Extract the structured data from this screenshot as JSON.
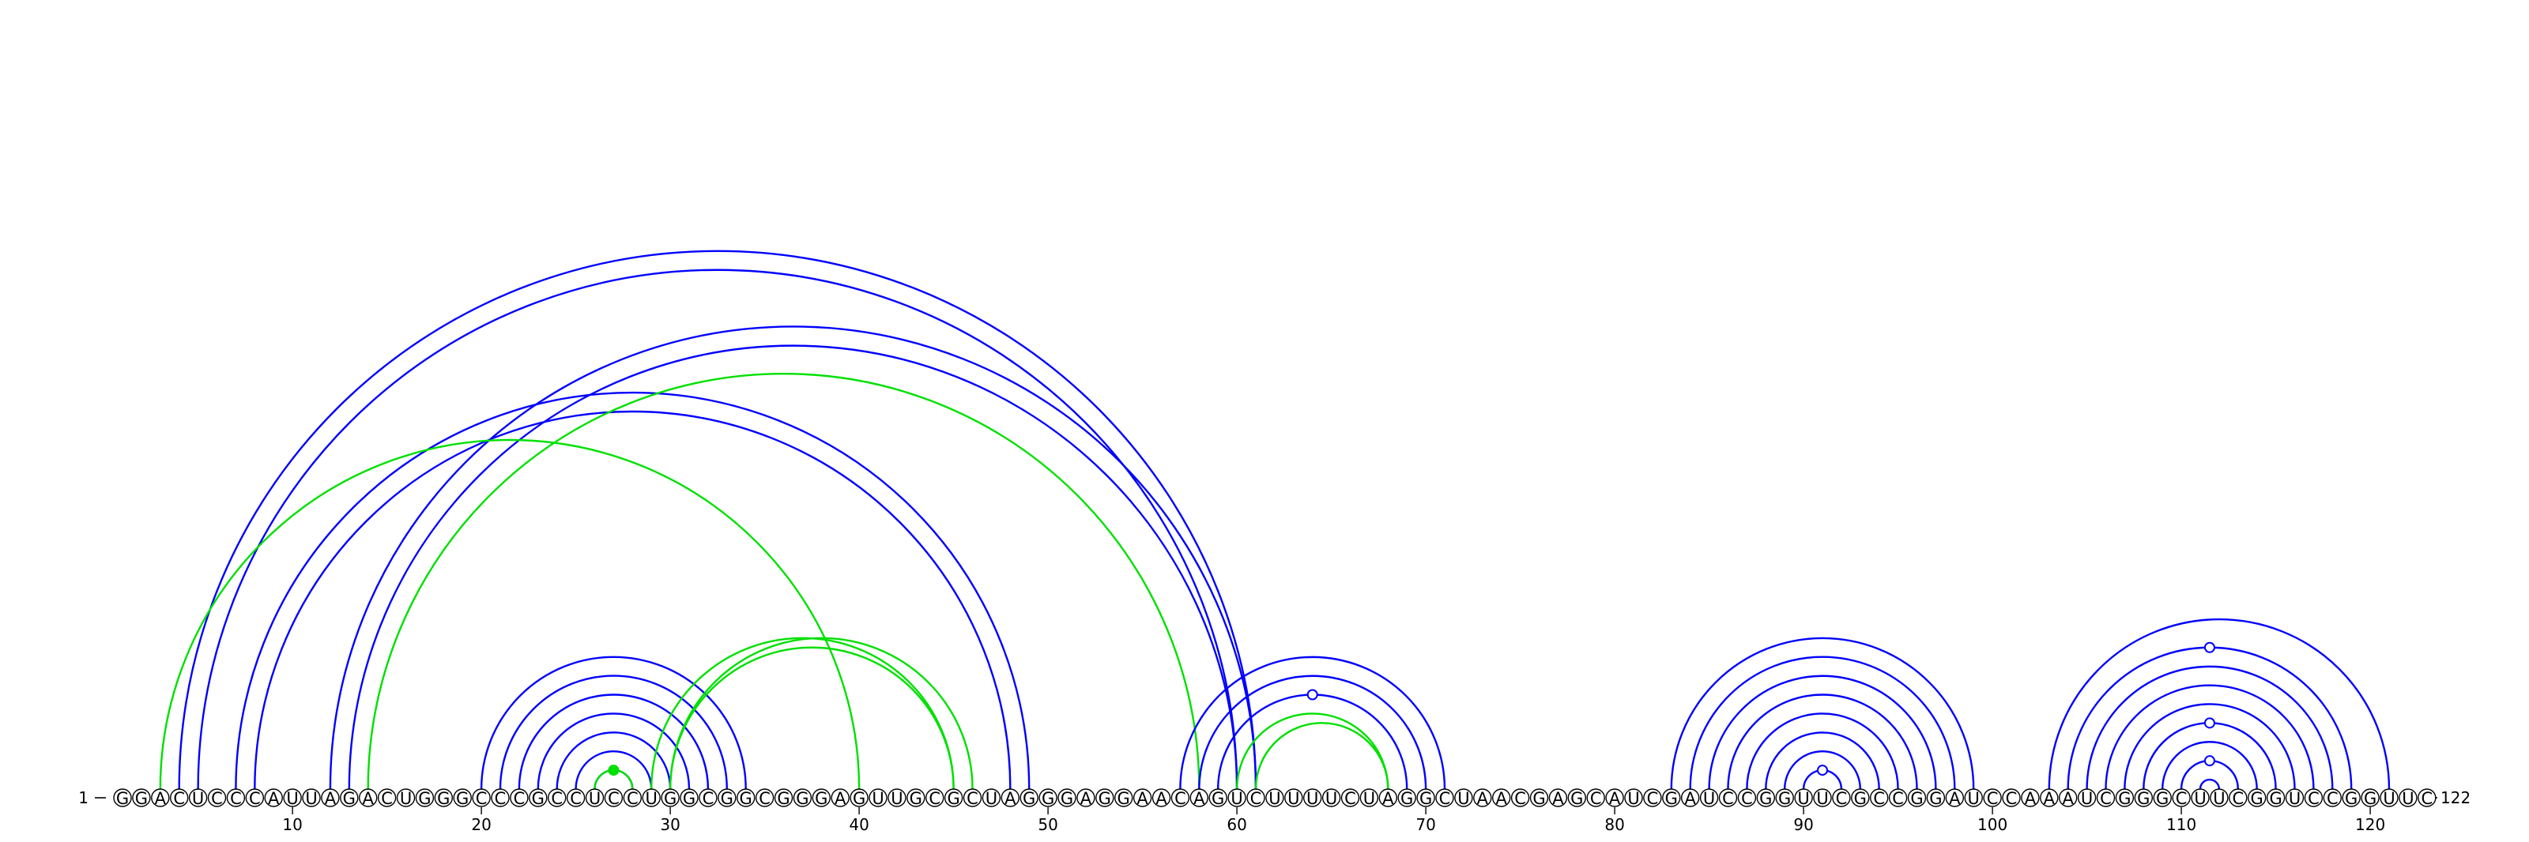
{
  "sequence": "GGACUCCCAUUAGACUGGGCCCGCCUCCUGGCGGCGGGAGUUGCGCUAGGGAGGAACAGUCUUUUCUAGGCUAACGAGCAUCGAUCCGGUUCGCCGGAUCCAAAUCGGGCUUCGGUCCGGUUC",
  "start_label": "1",
  "end_label": "122",
  "ticks": [
    "10",
    "20",
    "30",
    "40",
    "50",
    "60",
    "70",
    "80",
    "90",
    "100",
    "110",
    "120"
  ],
  "colors": {
    "blue": "#0000ff",
    "green": "#00e000"
  },
  "arcs": [
    {
      "i": 4,
      "j": 61,
      "color": "blue"
    },
    {
      "i": 5,
      "j": 60,
      "color": "blue"
    },
    {
      "i": 7,
      "j": 49,
      "color": "blue"
    },
    {
      "i": 8,
      "j": 48,
      "color": "blue"
    },
    {
      "i": 12,
      "j": 61,
      "color": "blue"
    },
    {
      "i": 13,
      "j": 60,
      "color": "blue"
    },
    {
      "i": 3,
      "j": 40,
      "color": "green"
    },
    {
      "i": 14,
      "j": 58,
      "color": "green"
    },
    {
      "i": 20,
      "j": 34,
      "color": "blue"
    },
    {
      "i": 21,
      "j": 33,
      "color": "blue"
    },
    {
      "i": 22,
      "j": 32,
      "color": "blue"
    },
    {
      "i": 23,
      "j": 31,
      "color": "blue"
    },
    {
      "i": 24,
      "j": 30,
      "color": "blue"
    },
    {
      "i": 25,
      "j": 29,
      "color": "blue"
    },
    {
      "i": 26,
      "j": 28,
      "color": "blue"
    },
    {
      "i": 26,
      "j": 28,
      "color": "green",
      "marker": "filled"
    },
    {
      "i": 30,
      "j": 46,
      "color": "green"
    },
    {
      "i": 29,
      "j": 45,
      "color": "green"
    },
    {
      "i": 30,
      "j": 45,
      "color": "green"
    },
    {
      "i": 57,
      "j": 71,
      "color": "blue"
    },
    {
      "i": 58,
      "j": 70,
      "color": "blue"
    },
    {
      "i": 59,
      "j": 69,
      "color": "blue",
      "marker": "open"
    },
    {
      "i": 60,
      "j": 68,
      "color": "green"
    },
    {
      "i": 61,
      "j": 68,
      "color": "green"
    },
    {
      "i": 83,
      "j": 99,
      "color": "blue"
    },
    {
      "i": 84,
      "j": 98,
      "color": "blue"
    },
    {
      "i": 85,
      "j": 97,
      "color": "blue"
    },
    {
      "i": 86,
      "j": 96,
      "color": "blue"
    },
    {
      "i": 87,
      "j": 95,
      "color": "blue"
    },
    {
      "i": 88,
      "j": 94,
      "color": "blue"
    },
    {
      "i": 89,
      "j": 93,
      "color": "blue"
    },
    {
      "i": 90,
      "j": 92,
      "color": "blue",
      "marker": "open"
    },
    {
      "i": 103,
      "j": 121,
      "color": "blue"
    },
    {
      "i": 104,
      "j": 119,
      "color": "blue",
      "marker": "open"
    },
    {
      "i": 105,
      "j": 118,
      "color": "blue"
    },
    {
      "i": 106,
      "j": 117,
      "color": "blue"
    },
    {
      "i": 107,
      "j": 116,
      "color": "blue"
    },
    {
      "i": 108,
      "j": 115,
      "color": "blue",
      "marker": "open"
    },
    {
      "i": 109,
      "j": 114,
      "color": "blue"
    },
    {
      "i": 110,
      "j": 113,
      "color": "blue",
      "marker": "open"
    },
    {
      "i": 111,
      "j": 112,
      "color": "blue"
    }
  ]
}
